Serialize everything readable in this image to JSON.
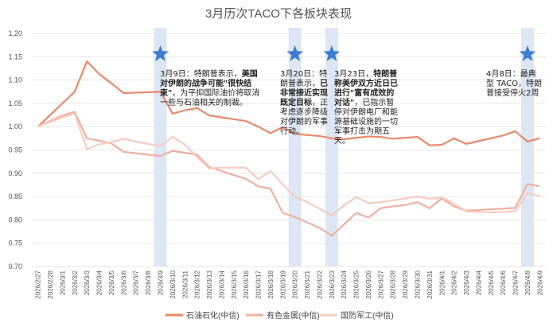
{
  "chart_data": {
    "type": "line",
    "title": "3月历次TACO下各板块表现",
    "x": [
      "2026/2/27",
      "2026/2/28",
      "2026/3/1",
      "2026/3/2",
      "2026/3/3",
      "2026/3/4",
      "2026/3/5",
      "2026/3/6",
      "2026/3/7",
      "2026/3/8",
      "2026/3/9",
      "2026/3/10",
      "2026/3/11",
      "2026/3/12",
      "2026/3/13",
      "2026/3/14",
      "2026/3/15",
      "2026/3/16",
      "2026/3/17",
      "2026/3/18",
      "2026/3/19",
      "2026/3/20",
      "2026/3/21",
      "2026/3/22",
      "2026/3/23",
      "2026/3/24",
      "2026/3/25",
      "2026/3/26",
      "2026/3/27",
      "2026/3/28",
      "2026/3/29",
      "2026/3/30",
      "2026/3/31",
      "2026/4/1",
      "2026/4/2",
      "2026/4/3",
      "2026/4/4",
      "2026/4/5",
      "2026/4/6",
      "2026/4/7",
      "2026/4/8",
      "2026/4/9"
    ],
    "ylim": [
      0.7,
      1.2
    ],
    "yticks": [
      "0.70",
      "0.75",
      "0.80",
      "0.85",
      "0.90",
      "0.95",
      "1.00",
      "1.05",
      "1.10",
      "1.15",
      "1.20"
    ],
    "series": [
      {
        "name": "石油石化(中信)",
        "color": "#E8896A",
        "values": [
          1.0,
          1.025,
          1.05,
          1.075,
          1.14,
          1.113,
          1.093,
          1.072,
          1.073,
          1.074,
          1.075,
          1.028,
          1.035,
          1.04,
          1.024,
          1.02,
          1.016,
          1.012,
          1.0,
          0.986,
          0.999,
          0.985,
          0.982,
          0.98,
          0.975,
          0.973,
          0.976,
          0.979,
          0.978,
          0.974,
          0.976,
          0.978,
          0.96,
          0.961,
          0.975,
          0.963,
          0.969,
          0.975,
          0.981,
          0.99,
          0.968,
          0.975
        ]
      },
      {
        "name": "有色金属(中信)",
        "color": "#F0AFA1",
        "values": [
          1.0,
          1.012,
          1.024,
          1.032,
          0.975,
          0.97,
          0.964,
          0.946,
          0.943,
          0.94,
          0.937,
          0.948,
          0.944,
          0.94,
          0.913,
          0.905,
          0.896,
          0.888,
          0.872,
          0.867,
          0.815,
          0.806,
          0.795,
          0.783,
          0.766,
          0.79,
          0.815,
          0.805,
          0.825,
          0.829,
          0.832,
          0.838,
          0.825,
          0.846,
          0.829,
          0.82,
          0.821,
          0.823,
          0.824,
          0.826,
          0.877,
          0.872
        ]
      },
      {
        "name": "国防军工(中信)",
        "color": "#F6CCC1",
        "values": [
          1.0,
          1.01,
          1.02,
          1.028,
          0.952,
          0.962,
          0.967,
          0.974,
          0.968,
          0.963,
          0.958,
          0.978,
          0.962,
          0.935,
          0.91,
          0.912,
          0.912,
          0.912,
          0.887,
          0.905,
          0.876,
          0.85,
          0.838,
          0.824,
          0.81,
          0.831,
          0.849,
          0.836,
          0.838,
          0.842,
          0.846,
          0.85,
          0.845,
          0.848,
          0.835,
          0.818,
          0.817,
          0.816,
          0.817,
          0.819,
          0.858,
          0.851
        ]
      }
    ],
    "event_bands": [
      {
        "x": "2026/3/9"
      },
      {
        "x": "2026/3/20"
      },
      {
        "x": "2026/3/23"
      },
      {
        "x": "2026/4/8"
      }
    ],
    "legend_position": "bottom",
    "grid": "horizontal"
  },
  "annotations": [
    {
      "date": "3月9日：",
      "text_a": "特朗普表示，",
      "bold": "美国对伊朗的战争可能\"很快结束\"",
      "text_b": "，为平抑国际油价将取消一些与石油相关的制裁。"
    },
    {
      "date": "3月20日：",
      "text_a": "特朗普表示，",
      "bold": "已非常接近实现既定目标",
      "text_b": "，正考虑逐步降级对伊朗的军事行动。"
    },
    {
      "date": "3月23日，",
      "text_a": "",
      "bold": "特朗普称美伊双方近日已进行\"富有成效的对话\"",
      "text_b": "，已指示暂停对伊朗电厂和能源基础设施的一切军事打击为期五天。"
    },
    {
      "date": "4月8日：",
      "text_a": "最典型 TACO，特朗普接受停火2周",
      "bold": "",
      "text_b": ""
    }
  ]
}
